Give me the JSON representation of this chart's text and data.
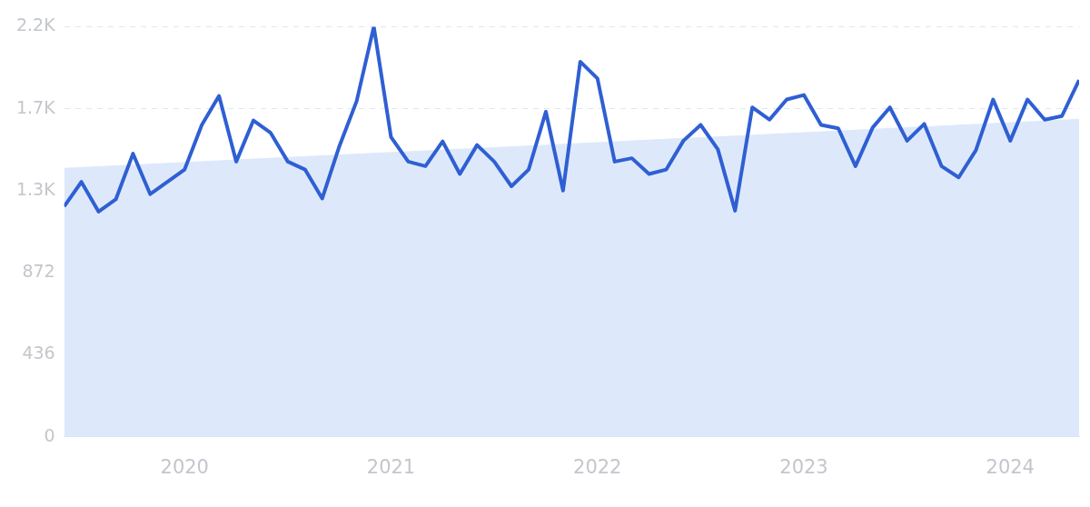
{
  "chart_data": {
    "type": "line",
    "xlim": [
      "2019-06",
      "2024-05"
    ],
    "xticks": [
      "2020",
      "2021",
      "2022",
      "2023",
      "2024"
    ],
    "ylim": [
      0,
      2180
    ],
    "yticks": [
      0,
      436,
      872,
      {
        "value": 1308,
        "label": "1.3K"
      },
      {
        "value": 1744,
        "label": "1.7K"
      },
      {
        "value": 2180,
        "label": "2.2K"
      }
    ],
    "grid": "y",
    "series": [
      {
        "type": "area",
        "color": "#dde9fb",
        "x": [
          "2019-06",
          "2024-05"
        ],
        "values": [
          1430,
          1690
        ]
      },
      {
        "color": "#2f5fd3",
        "x": [
          "2019-06",
          "2019-07",
          "2019-08",
          "2019-09",
          "2019-10",
          "2019-11",
          "2019-12",
          "2020-01",
          "2020-02",
          "2020-03",
          "2020-04",
          "2020-05",
          "2020-06",
          "2020-07",
          "2020-08",
          "2020-09",
          "2020-10",
          "2020-11",
          "2020-12",
          "2021-01",
          "2021-02",
          "2021-03",
          "2021-04",
          "2021-05",
          "2021-06",
          "2021-07",
          "2021-08",
          "2021-09",
          "2021-10",
          "2021-11",
          "2021-12",
          "2022-01",
          "2022-02",
          "2022-03",
          "2022-04",
          "2022-05",
          "2022-06",
          "2022-07",
          "2022-08",
          "2022-09",
          "2022-10",
          "2022-11",
          "2022-12",
          "2023-01",
          "2023-02",
          "2023-03",
          "2023-04",
          "2023-05",
          "2023-06",
          "2023-07",
          "2023-08",
          "2023-09",
          "2023-10",
          "2023-11",
          "2023-12",
          "2024-01",
          "2024-02",
          "2024-03",
          "2024-04",
          "2024-05"
        ],
        "values": [
          1225,
          1355,
          1197,
          1262,
          1505,
          1290,
          1355,
          1421,
          1658,
          1812,
          1463,
          1682,
          1616,
          1463,
          1421,
          1267,
          1546,
          1784,
          2180,
          1593,
          1463,
          1439,
          1570,
          1397,
          1551,
          1463,
          1332,
          1421,
          1728,
          1309,
          1994,
          1905,
          1463,
          1481,
          1397,
          1421,
          1574,
          1658,
          1528,
          1202,
          1751,
          1686,
          1793,
          1817,
          1658,
          1640,
          1439,
          1644,
          1751,
          1574,
          1663,
          1439,
          1379,
          1523,
          1793,
          1574,
          1793,
          1686,
          1705,
          1896
        ]
      }
    ]
  }
}
